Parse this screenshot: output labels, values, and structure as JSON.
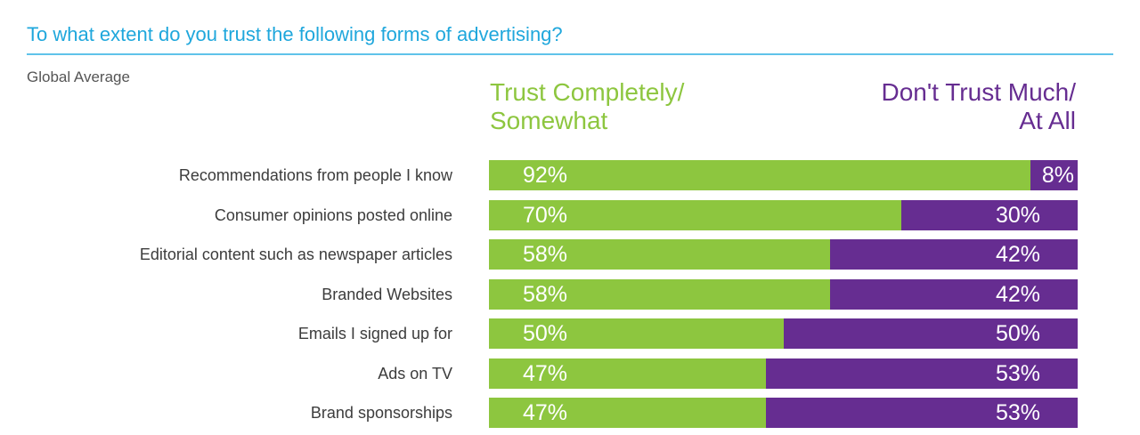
{
  "title": "To what extent do you trust the following forms of advertising?",
  "subtitle": "Global Average",
  "legend": {
    "trust": "Trust Completely/\nSomewhat",
    "distrust": "Don't Trust Much/\nAt All"
  },
  "colors": {
    "trust": "#8dc63f",
    "distrust": "#662d91",
    "title": "#1fa7dc"
  },
  "chart_data": {
    "type": "bar",
    "stacked": true,
    "orientation": "horizontal",
    "title": "To what extent do you trust the following forms of advertising?",
    "subtitle": "Global Average",
    "categories": [
      "Recommendations from people I know",
      "Consumer opinions posted online",
      "Editorial content such as newspaper articles",
      "Branded Websites",
      "Emails I signed up for",
      "Ads on TV",
      "Brand sponsorships"
    ],
    "series": [
      {
        "name": "Trust Completely/ Somewhat",
        "values": [
          92,
          70,
          58,
          58,
          50,
          47,
          47
        ]
      },
      {
        "name": "Don't Trust Much/ At All",
        "values": [
          8,
          30,
          42,
          42,
          50,
          53,
          53
        ]
      }
    ],
    "value_labels": {
      "trust": [
        "92%",
        "70%",
        "58%",
        "58%",
        "50%",
        "47%",
        "47%"
      ],
      "distrust": [
        "8%",
        "30%",
        "42%",
        "42%",
        "50%",
        "53%",
        "53%"
      ]
    },
    "xlim": [
      0,
      100
    ],
    "grid": false,
    "legend_position": "top"
  }
}
